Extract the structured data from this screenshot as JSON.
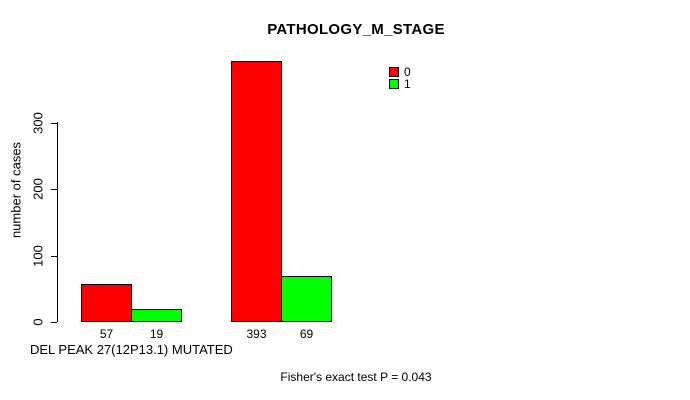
{
  "chart_data": {
    "type": "bar",
    "title": "PATHOLOGY_M_STAGE",
    "ylabel": "number of cases",
    "xlabel": "DEL PEAK 27(12P13.1) MUTATED",
    "annotation": "Fisher's exact test P = 0.043",
    "yticks": [
      0,
      100,
      200,
      300
    ],
    "ylim": [
      0,
      400
    ],
    "grid": false,
    "legend_position": "top-right",
    "value_labels_shown": true,
    "series": [
      {
        "name": "0",
        "color": "#FF0000",
        "values": [
          57,
          393
        ]
      },
      {
        "name": "1",
        "color": "#00FF00",
        "values": [
          19,
          69
        ]
      }
    ]
  }
}
